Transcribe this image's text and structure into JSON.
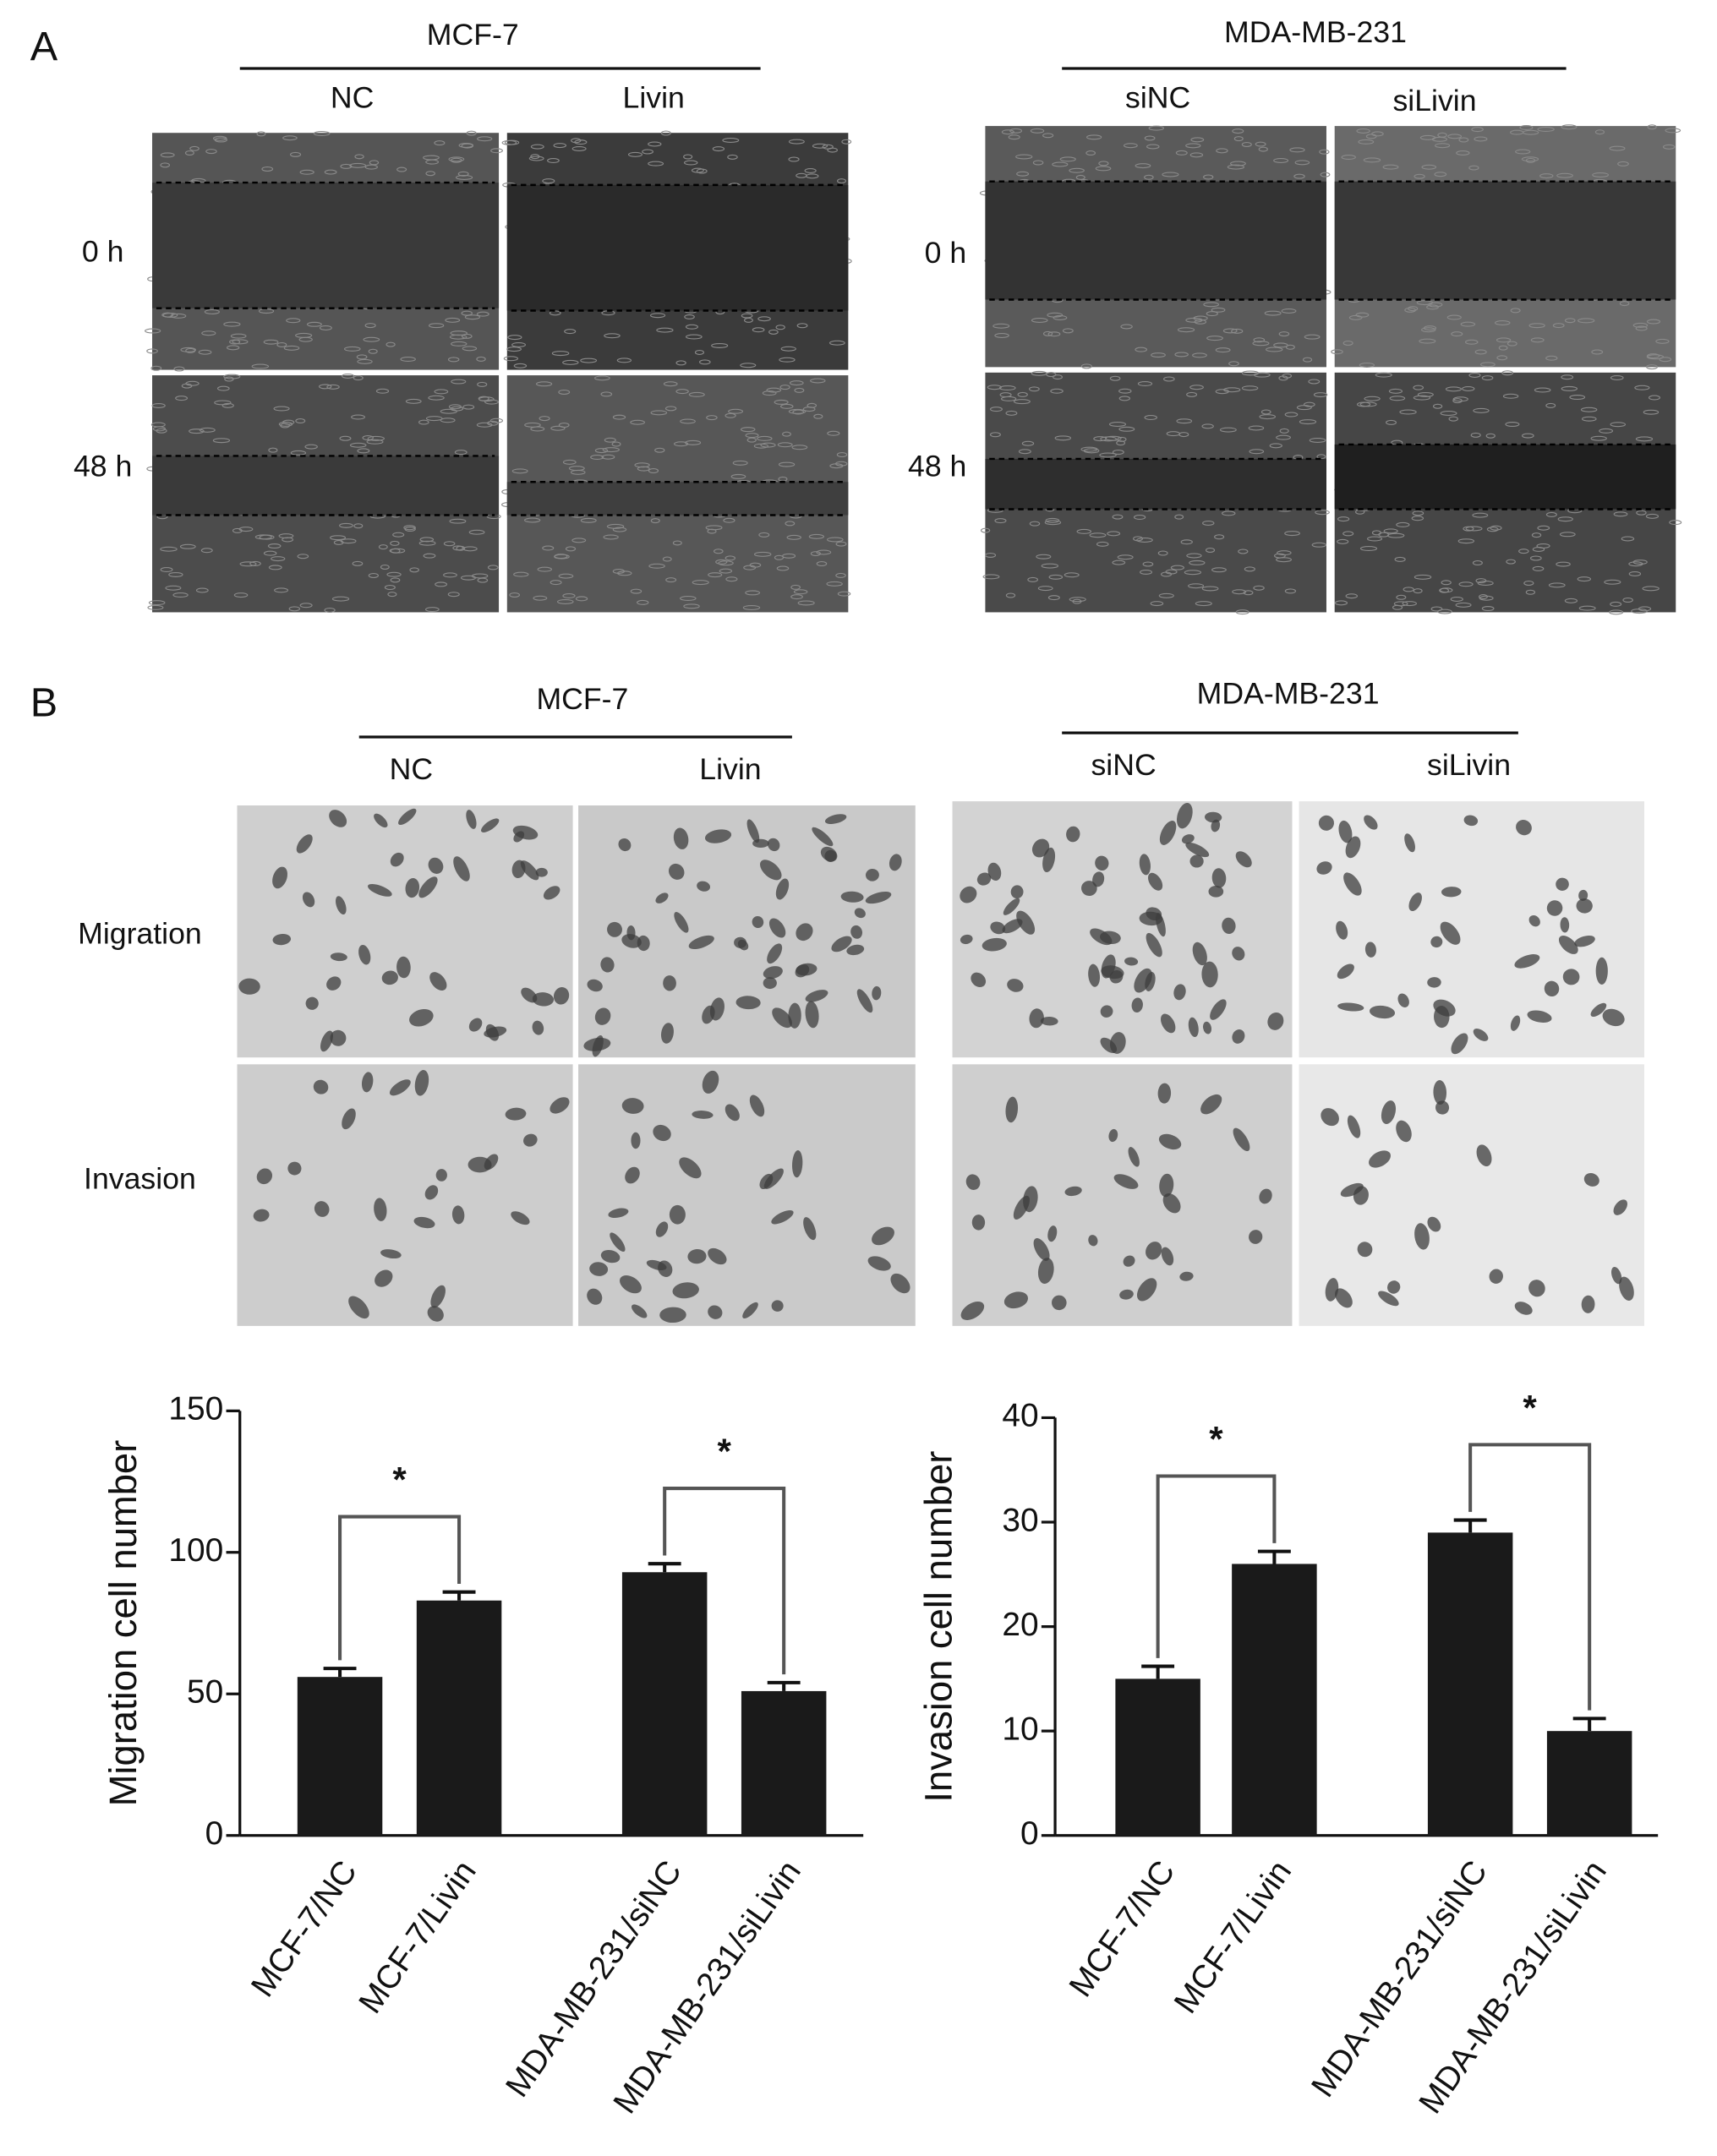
{
  "panel_a": {
    "label": "A",
    "groups": [
      {
        "title": "MCF-7",
        "columns": [
          "NC",
          "Livin"
        ],
        "rows": [
          "0 h",
          "48 h"
        ]
      },
      {
        "title": "MDA-MB-231",
        "columns": [
          "siNC",
          "siLivin"
        ],
        "rows": [
          "0 h",
          "48 h"
        ]
      }
    ]
  },
  "panel_b": {
    "label": "B",
    "groups": [
      {
        "title": "MCF-7",
        "columns": [
          "NC",
          "Livin"
        ],
        "rows": [
          "Migration",
          "Invasion"
        ]
      },
      {
        "title": "MDA-MB-231",
        "columns": [
          "siNC",
          "siLivin"
        ]
      }
    ]
  },
  "chart_data": [
    {
      "type": "bar",
      "y_label": "Migration cell number",
      "categories": [
        "MCF-7/NC",
        "MCF-7/Livin",
        "MDA-MB-231/siNC",
        "MDA-MB-231/siLivin"
      ],
      "values": [
        56,
        83,
        93,
        51
      ],
      "errors": [
        3,
        3,
        3,
        3
      ],
      "color": "#1a1a1a",
      "ylim": [
        0,
        150
      ],
      "yticks": [
        0,
        50,
        100,
        150
      ],
      "annotations": [
        "*",
        "*"
      ]
    },
    {
      "type": "bar",
      "y_label": "Invasion cell number",
      "categories": [
        "MCF-7/NC",
        "MCF-7/Livin",
        "MDA-MB-231/siNC",
        "MDA-MB-231/siLivin"
      ],
      "values": [
        15,
        26,
        29,
        10
      ],
      "errors": [
        1.2,
        1.2,
        1.2,
        1.2
      ],
      "color": "#1a1a1a",
      "ylim": [
        0,
        40
      ],
      "yticks": [
        0,
        10,
        20,
        30,
        40
      ],
      "annotations": [
        "*",
        "*"
      ]
    }
  ]
}
